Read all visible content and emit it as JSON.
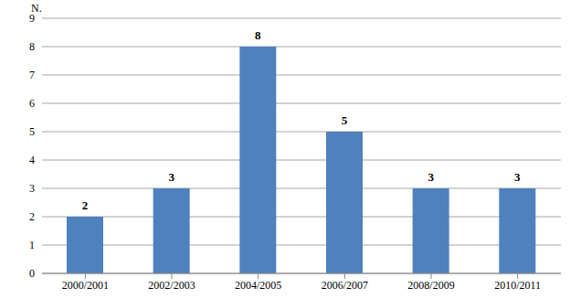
{
  "chart_data": {
    "type": "bar",
    "y_label": "N.",
    "categories": [
      "2000/2001",
      "2002/2003",
      "2004/2005",
      "2006/2007",
      "2008/2009",
      "2010/2011"
    ],
    "values": [
      2,
      3,
      8,
      5,
      3,
      3
    ],
    "color": "#4f81bd",
    "ylim": [
      0,
      9
    ],
    "yticks": [
      0,
      1,
      2,
      3,
      4,
      5,
      6,
      7,
      8,
      9
    ],
    "grid": true,
    "data_labels": true
  }
}
